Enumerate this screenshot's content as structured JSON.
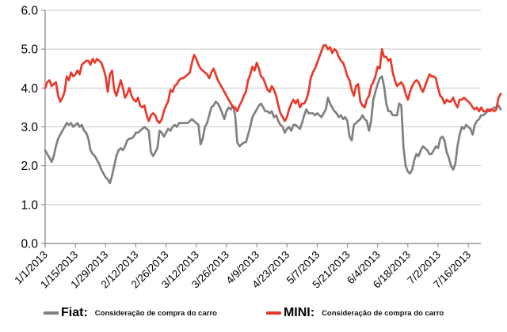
{
  "chart_data": {
    "type": "line",
    "grid": true,
    "legend_position": "bottom",
    "ylim": [
      0,
      6
    ],
    "y_tick_labels": [
      "0.0",
      "1.0",
      "2.0",
      "3.0",
      "4.0",
      "5.0",
      "6.0"
    ],
    "x_tick_labels": [
      "1/1/2013",
      "1/15/2013",
      "1/29/2013",
      "2/12/2013",
      "2/26/2013",
      "3/12/2013",
      "3/26/2013",
      "4/9/2013",
      "4/23/2013",
      "5/7/2013",
      "5/21/2013",
      "6/4/2013",
      "6/18/2013",
      "7/2/2013",
      "7/16/2013"
    ],
    "x_tick_interval_days": 14,
    "grid_color": "#c9c9c9",
    "axis_color": "#808080",
    "tick_label_color": "#000000",
    "series": [
      {
        "name": "Fiat",
        "legend_label": "Fiat:",
        "caption": "Consideração de compra do carro",
        "color": "#808080",
        "values": [
          2.4,
          2.3,
          2.2,
          2.1,
          2.25,
          2.5,
          2.7,
          2.8,
          2.9,
          3.0,
          3.1,
          3.05,
          3.1,
          3.0,
          3.05,
          3.1,
          3.0,
          3.05,
          2.9,
          2.85,
          2.7,
          2.4,
          2.3,
          2.25,
          2.15,
          2.05,
          1.9,
          1.8,
          1.7,
          1.65,
          1.55,
          1.75,
          2.0,
          2.25,
          2.4,
          2.45,
          2.4,
          2.5,
          2.65,
          2.7,
          2.7,
          2.75,
          2.85,
          2.85,
          2.9,
          2.95,
          3.0,
          2.95,
          2.9,
          2.35,
          2.25,
          2.35,
          2.45,
          2.9,
          2.85,
          2.75,
          2.85,
          2.95,
          2.9,
          3.0,
          3.05,
          3.0,
          3.1,
          3.1,
          3.1,
          3.1,
          3.1,
          3.15,
          3.2,
          3.15,
          3.1,
          3.05,
          2.55,
          2.7,
          3.0,
          3.1,
          3.3,
          3.5,
          3.55,
          3.65,
          3.6,
          3.5,
          3.35,
          3.2,
          3.4,
          3.5,
          3.45,
          3.55,
          3.3,
          2.6,
          2.5,
          2.55,
          2.6,
          2.6,
          2.8,
          3.0,
          3.25,
          3.35,
          3.45,
          3.55,
          3.6,
          3.5,
          3.4,
          3.4,
          3.35,
          3.4,
          3.25,
          3.3,
          3.15,
          3.05,
          3.0,
          2.85,
          2.95,
          3.0,
          2.9,
          3.05,
          3.05,
          3.0,
          2.95,
          3.1,
          3.3,
          3.45,
          3.35,
          3.35,
          3.35,
          3.3,
          3.35,
          3.3,
          3.25,
          3.35,
          3.45,
          3.75,
          3.6,
          3.5,
          3.4,
          3.35,
          3.25,
          3.3,
          3.2,
          3.25,
          3.15,
          2.75,
          2.65,
          3.05,
          3.1,
          3.15,
          3.2,
          3.3,
          3.2,
          3.15,
          2.9,
          3.15,
          3.7,
          3.9,
          4.1,
          4.25,
          4.3,
          4.05,
          3.6,
          3.4,
          3.4,
          3.3,
          3.3,
          3.3,
          3.6,
          3.55,
          2.45,
          2.0,
          1.85,
          1.8,
          1.9,
          2.15,
          2.3,
          2.25,
          2.4,
          2.5,
          2.45,
          2.4,
          2.3,
          2.3,
          2.4,
          2.5,
          2.45,
          2.7,
          2.75,
          2.65,
          2.35,
          2.2,
          2.0,
          1.9,
          2.05,
          2.5,
          2.8,
          3.0,
          2.95,
          3.05,
          3.0,
          2.95,
          2.8,
          3.05,
          3.15,
          3.2,
          3.3,
          3.3,
          3.35,
          3.4,
          3.45,
          3.45,
          3.5,
          3.5,
          3.55,
          3.45
        ]
      },
      {
        "name": "MINI",
        "legend_label": "MINI:",
        "caption": "Consideração de compra do carro",
        "color": "#e8392b",
        "values": [
          4.0,
          4.15,
          4.2,
          4.05,
          4.1,
          4.15,
          3.8,
          3.65,
          3.75,
          3.9,
          4.3,
          4.2,
          4.4,
          4.3,
          4.35,
          4.45,
          4.35,
          4.6,
          4.65,
          4.7,
          4.7,
          4.6,
          4.75,
          4.65,
          4.75,
          4.7,
          4.65,
          4.5,
          4.3,
          3.9,
          4.35,
          4.45,
          3.95,
          3.8,
          4.0,
          4.2,
          4.0,
          3.75,
          3.85,
          4.0,
          3.8,
          3.7,
          3.65,
          3.75,
          3.55,
          3.5,
          3.55,
          3.3,
          3.15,
          3.3,
          3.35,
          3.3,
          3.15,
          3.1,
          3.2,
          3.4,
          3.55,
          3.65,
          3.95,
          3.9,
          4.05,
          4.1,
          4.2,
          4.25,
          4.25,
          4.3,
          4.35,
          4.4,
          4.65,
          4.85,
          4.75,
          4.6,
          4.5,
          4.45,
          4.4,
          4.35,
          4.25,
          4.4,
          4.5,
          4.35,
          4.2,
          4.1,
          4.0,
          3.9,
          3.8,
          3.7,
          3.6,
          3.5,
          3.5,
          3.4,
          3.55,
          3.65,
          3.8,
          3.9,
          4.2,
          4.35,
          4.55,
          4.45,
          4.65,
          4.5,
          4.3,
          4.25,
          4.1,
          3.95,
          3.9,
          4.05,
          3.95,
          3.8,
          3.55,
          3.35,
          3.25,
          3.15,
          3.25,
          3.45,
          3.6,
          3.7,
          3.6,
          3.7,
          3.5,
          3.6,
          3.6,
          3.7,
          3.9,
          4.25,
          4.4,
          4.5,
          4.65,
          4.8,
          4.95,
          5.1,
          5.1,
          5.0,
          5.05,
          4.9,
          5.0,
          4.95,
          4.8,
          4.7,
          4.65,
          4.5,
          4.3,
          4.2,
          3.95,
          3.8,
          4.05,
          4.1,
          3.65,
          3.55,
          3.5,
          3.7,
          3.8,
          4.05,
          4.15,
          4.3,
          4.55,
          4.5,
          5.0,
          4.8,
          4.8,
          4.7,
          4.75,
          4.4,
          4.2,
          4.05,
          4.1,
          4.15,
          4.05,
          3.85,
          3.7,
          3.9,
          4.05,
          4.15,
          4.2,
          4.15,
          4.0,
          3.9,
          4.05,
          4.2,
          4.35,
          4.3,
          4.3,
          4.25,
          4.0,
          3.8,
          3.75,
          3.6,
          3.7,
          3.65,
          3.65,
          3.75,
          3.6,
          3.5,
          3.7,
          3.7,
          3.75,
          3.7,
          3.65,
          3.6,
          3.5,
          3.45,
          3.5,
          3.4,
          3.5,
          3.4,
          3.4,
          3.45,
          3.4,
          3.45,
          3.4,
          3.45,
          3.75,
          3.85
        ]
      }
    ]
  }
}
